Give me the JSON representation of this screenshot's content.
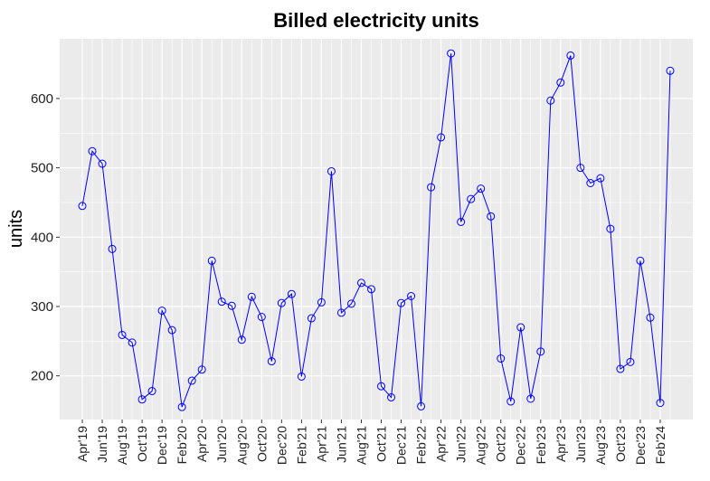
{
  "chart_data": {
    "type": "line",
    "title": "Billed electricity units",
    "xlabel": "",
    "ylabel": "units",
    "ylim": [
      137,
      686
    ],
    "y_ticks": [
      200,
      300,
      400,
      500,
      600
    ],
    "grid": true,
    "colors": {
      "panel": "#ebebeb",
      "grid": "#ffffff",
      "line": "#0000ff",
      "marker": "#0000ff"
    },
    "x_tick_labels": [
      "Apr'19",
      "Jun'19",
      "Aug'19",
      "Oct'19",
      "Dec'19",
      "Feb'20",
      "Apr'20",
      "Jun'20",
      "Aug'20",
      "Oct'20",
      "Dec'20",
      "Feb'21",
      "Apr'21",
      "Jun'21",
      "Aug'21",
      "Oct'21",
      "Dec'21",
      "Feb'22",
      "Apr'22",
      "Jun'22",
      "Aug'22",
      "Oct'22",
      "Dec'22",
      "Feb'23",
      "Apr'23",
      "Jun'23",
      "Aug'23",
      "Oct'23",
      "Dec'23",
      "Feb'24"
    ],
    "x": [
      "Apr'19",
      "May'19",
      "Jun'19",
      "Jul'19",
      "Aug'19",
      "Sep'19",
      "Oct'19",
      "Nov'19",
      "Dec'19",
      "Jan'20",
      "Feb'20",
      "Mar'20",
      "Apr'20",
      "May'20",
      "Jun'20",
      "Jul'20",
      "Aug'20",
      "Sep'20",
      "Oct'20",
      "Nov'20",
      "Dec'20",
      "Jan'21",
      "Feb'21",
      "Mar'21",
      "Apr'21",
      "May'21",
      "Jun'21",
      "Jul'21",
      "Aug'21",
      "Sep'21",
      "Oct'21",
      "Nov'21",
      "Dec'21",
      "Jan'22",
      "Feb'22",
      "Mar'22",
      "Apr'22",
      "May'22",
      "Jun'22",
      "Jul'22",
      "Aug'22",
      "Sep'22",
      "Oct'22",
      "Nov'22",
      "Dec'22",
      "Jan'23",
      "Feb'23",
      "Mar'23",
      "Apr'23",
      "May'23",
      "Jun'23",
      "Jul'23",
      "Aug'23",
      "Sep'23",
      "Oct'23",
      "Nov'23",
      "Dec'23",
      "Jan'24",
      "Feb'24",
      "Mar'24"
    ],
    "values": [
      445,
      524,
      506,
      383,
      259,
      248,
      166,
      178,
      294,
      266,
      155,
      193,
      209,
      366,
      307,
      301,
      252,
      314,
      285,
      221,
      305,
      318,
      199,
      283,
      306,
      495,
      291,
      304,
      334,
      325,
      185,
      169,
      305,
      315,
      156,
      472,
      544,
      665,
      422,
      455,
      470,
      430,
      225,
      163,
      270,
      167,
      235,
      597,
      623,
      662,
      500,
      478,
      485,
      412,
      210,
      220,
      366,
      284,
      161,
      640
    ]
  }
}
